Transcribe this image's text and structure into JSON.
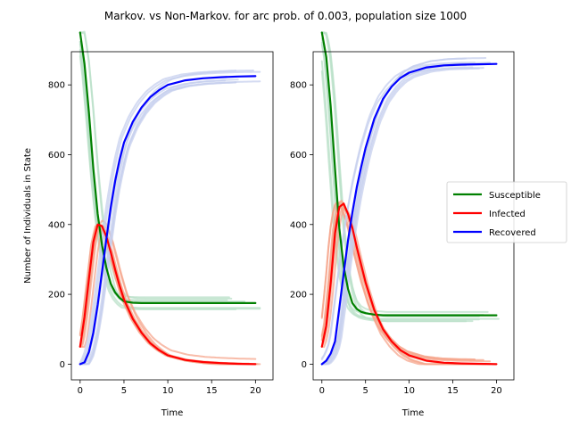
{
  "title": "Markov. vs Non-Markov. for arc prob. of 0.003, population size 1000",
  "colors": {
    "Susceptible": "#008000",
    "Infected": "#ff0000",
    "Recovered": "#0000ff",
    "Susceptible_sim": "#b9e0c8",
    "Infected_sim": "#f6a58c",
    "Recovered_sim": "#c6cfee"
  },
  "chart_data": [
    {
      "type": "line",
      "title": "",
      "xlabel": "Time",
      "ylabel": "Number of Individuals in State",
      "xlim": [
        -1,
        22
      ],
      "ylim": [
        -45,
        895
      ],
      "xticks": [
        0,
        5,
        10,
        15,
        20
      ],
      "yticks": [
        0,
        200,
        400,
        600,
        800
      ],
      "series": [
        {
          "name": "Susceptible",
          "x": [
            0,
            0.5,
            1,
            1.5,
            2,
            2.5,
            3,
            3.5,
            4,
            4.5,
            5,
            6,
            7,
            8,
            9,
            10,
            12,
            14,
            16,
            18,
            20
          ],
          "y": [
            950,
            860,
            720,
            560,
            430,
            340,
            275,
            230,
            205,
            190,
            180,
            176,
            175,
            175,
            175,
            175,
            175,
            175,
            175,
            175,
            175
          ]
        },
        {
          "name": "Infected",
          "x": [
            0,
            0.5,
            1,
            1.5,
            2,
            2.5,
            3,
            3.5,
            4,
            4.5,
            5,
            6,
            7,
            8,
            9,
            10,
            12,
            14,
            16,
            18,
            20
          ],
          "y": [
            50,
            135,
            245,
            350,
            400,
            395,
            365,
            320,
            270,
            225,
            185,
            130,
            90,
            60,
            40,
            25,
            12,
            6,
            3,
            1,
            0
          ]
        },
        {
          "name": "Recovered",
          "x": [
            0,
            0.5,
            1,
            1.5,
            2,
            2.5,
            3,
            3.5,
            4,
            4.5,
            5,
            6,
            7,
            8,
            9,
            10,
            12,
            14,
            16,
            18,
            20
          ],
          "y": [
            0,
            5,
            35,
            90,
            170,
            265,
            360,
            450,
            525,
            585,
            635,
            694,
            735,
            765,
            785,
            800,
            813,
            819,
            822,
            824,
            825
          ]
        }
      ]
    },
    {
      "type": "line",
      "title": "",
      "xlabel": "Time",
      "ylabel": "",
      "xlim": [
        -1,
        22
      ],
      "ylim": [
        -45,
        895
      ],
      "xticks": [
        0,
        5,
        10,
        15,
        20
      ],
      "yticks": [
        0,
        200,
        400,
        600,
        800
      ],
      "series": [
        {
          "name": "Susceptible",
          "x": [
            0,
            0.5,
            1,
            1.5,
            2,
            2.5,
            3,
            3.5,
            4,
            4.5,
            5,
            6,
            7,
            8,
            9,
            10,
            12,
            14,
            16,
            18,
            20
          ],
          "y": [
            950,
            880,
            740,
            560,
            390,
            280,
            215,
            175,
            158,
            150,
            146,
            142,
            140,
            140,
            140,
            140,
            140,
            140,
            140,
            140,
            140
          ]
        },
        {
          "name": "Infected",
          "x": [
            0,
            0.5,
            1,
            1.5,
            2,
            2.5,
            3,
            3.5,
            4,
            4.5,
            5,
            6,
            7,
            8,
            9,
            10,
            12,
            14,
            16,
            18,
            20
          ],
          "y": [
            50,
            110,
            230,
            375,
            450,
            460,
            430,
            390,
            335,
            285,
            235,
            155,
            100,
            65,
            40,
            25,
            10,
            4,
            2,
            1,
            0
          ]
        },
        {
          "name": "Recovered",
          "x": [
            0,
            0.5,
            1,
            1.5,
            2,
            2.5,
            3,
            3.5,
            4,
            4.5,
            5,
            6,
            7,
            8,
            9,
            10,
            12,
            14,
            16,
            18,
            20
          ],
          "y": [
            0,
            10,
            30,
            65,
            160,
            260,
            355,
            435,
            507,
            565,
            619,
            703,
            760,
            795,
            820,
            835,
            850,
            856,
            858,
            859,
            860
          ]
        }
      ]
    }
  ],
  "legend": {
    "placement": "right",
    "entries": [
      "Susceptible",
      "Infected",
      "Recovered"
    ]
  }
}
